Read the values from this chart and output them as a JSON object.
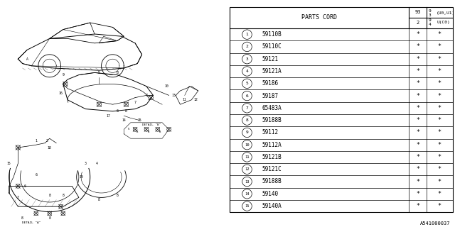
{
  "footer_code": "A541000037",
  "table_header": "PARTS CORD",
  "parts": [
    {
      "num": 1,
      "code": "59110B"
    },
    {
      "num": 2,
      "code": "59110C"
    },
    {
      "num": 3,
      "code": "59121"
    },
    {
      "num": 4,
      "code": "59121A"
    },
    {
      "num": 5,
      "code": "59186"
    },
    {
      "num": 6,
      "code": "59187"
    },
    {
      "num": 7,
      "code": "65483A"
    },
    {
      "num": 8,
      "code": "59188B"
    },
    {
      "num": 9,
      "code": "59112"
    },
    {
      "num": 10,
      "code": "59112A"
    },
    {
      "num": 11,
      "code": "59121B"
    },
    {
      "num": 12,
      "code": "59121C"
    },
    {
      "num": 13,
      "code": "59188B"
    },
    {
      "num": 14,
      "code": "59140"
    },
    {
      "num": 15,
      "code": "59140A"
    }
  ],
  "bg_color": "#ffffff",
  "text_color": "#000000"
}
